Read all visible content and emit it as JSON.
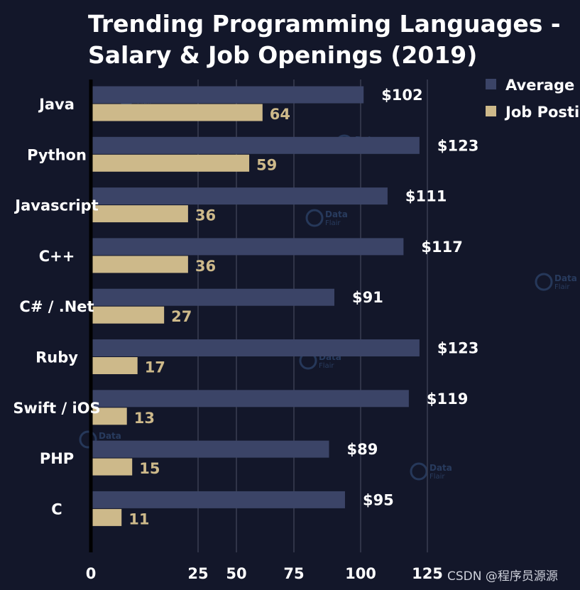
{
  "chart_data": {
    "type": "bar",
    "orientation": "horizontal",
    "title_lines": [
      "Trending Programming Languages -",
      "Salary & Job Openings (2019)"
    ],
    "categories": [
      "Java",
      "Python",
      "Javascript",
      "C++",
      "C# / .Net",
      "Ruby",
      "Swift / iOS",
      "PHP",
      "C"
    ],
    "series": [
      {
        "name": "Average Salary",
        "legend_visible": "Average S",
        "color": "#3b4467",
        "values": [
          102,
          123,
          111,
          117,
          91,
          123,
          119,
          89,
          95
        ],
        "labels": [
          "$102",
          "$123",
          "$111",
          "$117",
          "$91",
          "$123",
          "$119",
          "$89",
          "$95"
        ]
      },
      {
        "name": "Job Postings",
        "legend_visible": "Job Posti",
        "color": "#cdb98a",
        "values": [
          64,
          59,
          36,
          36,
          27,
          17,
          13,
          15,
          11
        ],
        "labels": [
          "64",
          "59",
          "36",
          "36",
          "27",
          "17",
          "13",
          "15",
          "11"
        ]
      }
    ],
    "xticks": [
      0,
      25,
      50,
      75,
      100,
      125
    ],
    "xtick_labels": [
      "0",
      "25",
      "50",
      "75",
      "100",
      "125"
    ],
    "xlim": [
      0,
      125
    ],
    "grid": true,
    "legend_position": "top-right"
  },
  "watermark": {
    "brand": "Data",
    "sub": "Flair"
  },
  "footer": {
    "credit": "CSDN @程序员源源"
  },
  "colors": {
    "background": "#13172a",
    "grid": "#3a3f52",
    "axis": "#000000"
  }
}
